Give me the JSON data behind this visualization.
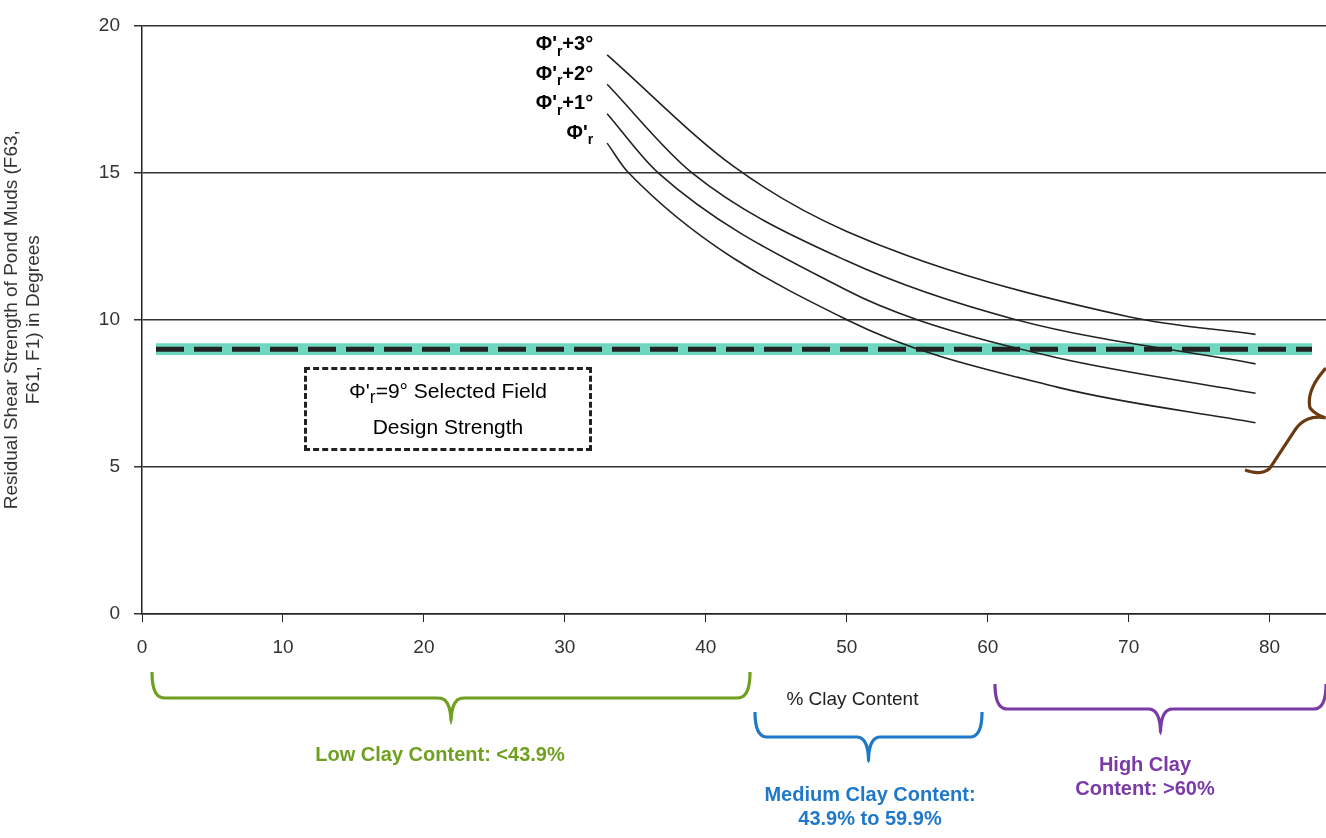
{
  "chart_data": {
    "type": "line",
    "ylabel": "Residual Shear Strength of Pond Muds (F63, F61, F1) in Degrees",
    "xlabel": "% Clay Content",
    "xlim": [
      0,
      84
    ],
    "xticks": [
      0,
      10,
      20,
      30,
      40,
      50,
      60,
      70,
      80
    ],
    "ylim": [
      0,
      20
    ],
    "yticks": [
      0,
      5,
      10,
      15,
      20
    ],
    "grid": "y",
    "legend": false,
    "line_style": "solid",
    "series": [
      {
        "name": "Φ'$_{r}$+3°",
        "color": "#222222",
        "x": [
          33,
          42,
          50,
          70,
          79
        ],
        "values": [
          19,
          15.2,
          13,
          10.1,
          9.5
        ]
      },
      {
        "name": "Φ'$_{r}$+2°",
        "color": "#222222",
        "x": [
          33,
          39,
          50,
          62,
          79
        ],
        "values": [
          18,
          15,
          12,
          10,
          8.5
        ]
      },
      {
        "name": "Φ'$_{r}$+1°",
        "color": "#222222",
        "x": [
          33,
          36.6,
          50,
          55,
          65,
          79
        ],
        "values": [
          17,
          15,
          11,
          10,
          8.7,
          7.5
        ]
      },
      {
        "name": "Φ'$_{r}$",
        "color": "#222222",
        "x": [
          33,
          34.5,
          50,
          65,
          79
        ],
        "values": [
          16,
          15,
          10,
          7.7,
          6.5
        ]
      }
    ],
    "ref_lines": [
      {
        "axis": "y",
        "value": 9,
        "label": "Φ'$_{r}$=9° Selected Field Design Strength",
        "color": "#222222",
        "line_style": "dashed"
      }
    ],
    "bands": [
      {
        "axis": "y",
        "from": 8.8,
        "to": 9.2,
        "color": "#6fd6c0"
      }
    ],
    "annotations": [
      "Low Clay Content: <43.9%",
      "Medium Clay Content: 43.9% to 59.9%",
      "High Clay Content: >60%"
    ]
  }
}
